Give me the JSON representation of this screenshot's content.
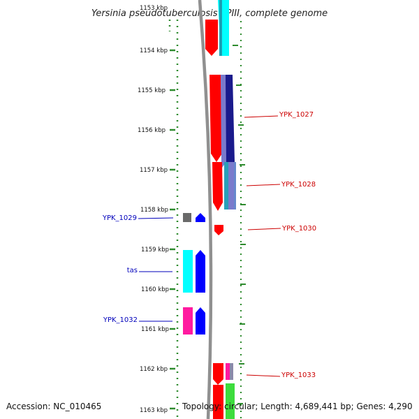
{
  "title": "Yersinia pseudotuberculosis YPIII, complete genome",
  "footer": {
    "accession": "Accession: NC_010465",
    "summary": "Topology: circular; Length: 4,689,441 bp; Genes: 4,290"
  },
  "ruler": {
    "top_partial_label": "1153 kbp",
    "ticks": [
      "1154 kbp",
      "1155 kbp",
      "1156 kbp",
      "1157 kbp",
      "1158 kbp",
      "1159 kbp",
      "1160 kbp",
      "1161 kbp",
      "1162 kbp",
      "1163 kbp"
    ]
  },
  "colors": {
    "tick": "#2e8b2e",
    "backbone": "#909090",
    "right_label": "#cc0000",
    "left_label": "#0000bb",
    "red": "#ff0000",
    "cyan": "#00ffff",
    "blue": "#0000ff",
    "navy": "#1a1a8c",
    "slate": "#7a7acc",
    "teal": "#2aa0b8",
    "gray": "#6a6a6a",
    "pink": "#ff1aa0",
    "green": "#3ddc3d"
  },
  "right_labels": [
    {
      "text": "YPK_1027"
    },
    {
      "text": "YPK_1028"
    },
    {
      "text": "YPK_1030"
    },
    {
      "text": "YPK_1033"
    }
  ],
  "left_labels": [
    {
      "text": "YPK_1029"
    },
    {
      "text": "tas"
    },
    {
      "text": "YPK_1032"
    }
  ]
}
